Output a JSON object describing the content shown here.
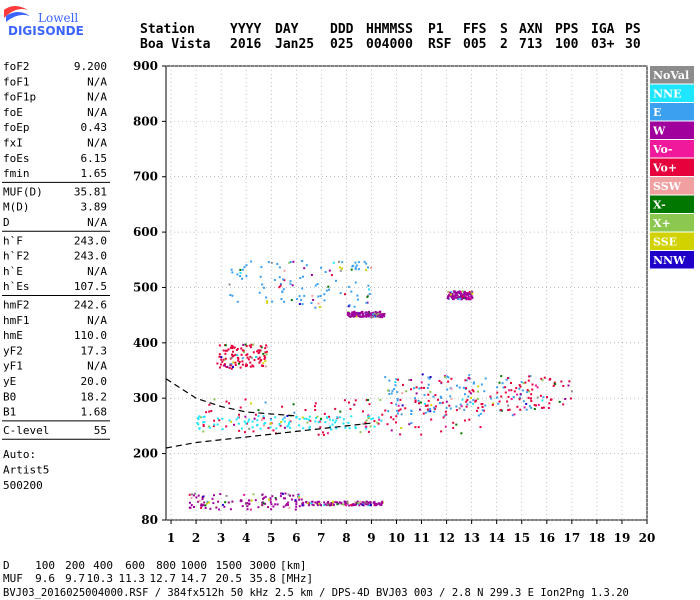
{
  "logo": {
    "line1": "Lowell",
    "line2": "DIGISONDE"
  },
  "header": {
    "columns": [
      {
        "label": "Station",
        "value": "Boa Vista"
      },
      {
        "label": "YYYY",
        "value": "2016"
      },
      {
        "label": "DAY",
        "value": "Jan25"
      },
      {
        "label": "DDD",
        "value": "025"
      },
      {
        "label": "HHMMSS",
        "value": "004000"
      },
      {
        "label": "P1",
        "value": "RSF"
      },
      {
        "label": "FFS",
        "value": "005"
      },
      {
        "label": "S",
        "value": "2"
      },
      {
        "label": "AXN",
        "value": "713"
      },
      {
        "label": "PPS",
        "value": "100"
      },
      {
        "label": "IGA",
        "value": "03+"
      },
      {
        "label": "PS",
        "value": "30"
      }
    ]
  },
  "parameters": {
    "group1": [
      {
        "name": "foF2",
        "value": "9.200"
      },
      {
        "name": "foF1",
        "value": "N/A"
      },
      {
        "name": "foF1p",
        "value": "N/A"
      },
      {
        "name": "foE",
        "value": "N/A"
      },
      {
        "name": "foEp",
        "value": "0.43"
      },
      {
        "name": "fxI",
        "value": "N/A"
      },
      {
        "name": "foEs",
        "value": "6.15"
      },
      {
        "name": "fmin",
        "value": "1.65"
      }
    ],
    "group2": [
      {
        "name": "MUF(D)",
        "value": "35.81"
      },
      {
        "name": "M(D)",
        "value": "3.89"
      },
      {
        "name": "D",
        "value": "N/A"
      }
    ],
    "group3": [
      {
        "name": "h`F",
        "value": "243.0"
      },
      {
        "name": "h`F2",
        "value": "243.0"
      },
      {
        "name": "h`E",
        "value": "N/A"
      },
      {
        "name": "h`Es",
        "value": "107.5"
      }
    ],
    "group4": [
      {
        "name": "hmF2",
        "value": "242.6"
      },
      {
        "name": "hmF1",
        "value": "N/A"
      },
      {
        "name": "hmE",
        "value": "110.0"
      },
      {
        "name": "yF2",
        "value": "17.3"
      },
      {
        "name": "yF1",
        "value": "N/A"
      },
      {
        "name": "yE",
        "value": "20.0"
      },
      {
        "name": "B0",
        "value": "18.2"
      },
      {
        "name": "B1",
        "value": "1.68"
      }
    ],
    "group5": [
      {
        "name": "C-level",
        "value": "55"
      }
    ],
    "auto": [
      "Auto:",
      "Artist5",
      "500200"
    ]
  },
  "legend": [
    {
      "label": "NoVal",
      "color": "#8c8c8c"
    },
    {
      "label": "NNE",
      "color": "#1ee6ff"
    },
    {
      "label": "E",
      "color": "#3ca0f0"
    },
    {
      "label": "W",
      "color": "#a0009b"
    },
    {
      "label": "Vo-",
      "color": "#f0189b"
    },
    {
      "label": "Vo+",
      "color": "#e6003c"
    },
    {
      "label": "SSW",
      "color": "#f0a0a0"
    },
    {
      "label": "X-",
      "color": "#007800"
    },
    {
      "label": "X+",
      "color": "#8cc850"
    },
    {
      "label": "SSE",
      "color": "#d2d200"
    },
    {
      "label": "NNW",
      "color": "#1e00c8"
    }
  ],
  "mufTable": {
    "dLabel": "D",
    "mufLabel": "MUF",
    "dValues": [
      "100",
      "200",
      "400",
      "600",
      "800",
      "1000",
      "1500",
      "3000"
    ],
    "dUnit": "[km]",
    "mufValues": [
      "9.6",
      "9.7",
      "10.3",
      "11.3",
      "12.7",
      "14.7",
      "20.5",
      "35.8"
    ],
    "mufUnit": "[MHz]"
  },
  "footer": "BVJ03_2016025004000.RSF / 384fx512h 50 kHz 2.5 km / DPS-4D BVJ03 003 / 2.8 N 299.3 E Ion2Png 1.3.20",
  "chart_data": {
    "type": "scatter",
    "xlim": [
      0.8,
      20
    ],
    "ylim": [
      80,
      900
    ],
    "x_ticks": [
      1,
      2,
      3,
      4,
      5,
      6,
      7,
      8,
      9,
      10,
      11,
      12,
      13,
      14,
      15,
      16,
      17,
      18,
      19,
      20
    ],
    "y_ticks": [
      80,
      200,
      300,
      400,
      500,
      600,
      700,
      800,
      900
    ],
    "grid": "dotted",
    "legend_position": "right",
    "echo_clusters": [
      {
        "name": "F2 O-trace",
        "color": "#e6003c",
        "x_range": [
          2.2,
          13.5
        ],
        "y_range": [
          235,
          300
        ]
      },
      {
        "name": "F2 cyan band",
        "color": "#1ee6ff",
        "x_range": [
          2.0,
          9.5
        ],
        "y_range": [
          245,
          270
        ]
      },
      {
        "name": "F2 spread",
        "color": "#3ca0f0",
        "x_range": [
          9.5,
          15.5
        ],
        "y_range": [
          270,
          345
        ]
      },
      {
        "name": "F2 mixed",
        "color": "#e6003c",
        "x_range": [
          10.0,
          17.0
        ],
        "y_range": [
          280,
          340
        ]
      },
      {
        "name": "Es",
        "color": "#a0009b",
        "x_range": [
          1.7,
          6.2
        ],
        "y_range": [
          100,
          130
        ]
      },
      {
        "name": "Es tail",
        "color": "#a0009b",
        "x_range": [
          6.2,
          9.5
        ],
        "y_range": [
          108,
          115
        ]
      },
      {
        "name": "2F2",
        "color": "#3ca0f0",
        "x_range": [
          3.2,
          9.0
        ],
        "y_range": [
          465,
          550
        ]
      },
      {
        "name": "2F2 segment",
        "color": "#a0009b",
        "x_range": [
          8.0,
          9.5
        ],
        "y_range": [
          448,
          458
        ]
      },
      {
        "name": "Multiple",
        "color": "#e6003c",
        "x_range": [
          2.8,
          4.8
        ],
        "y_range": [
          355,
          400
        ]
      },
      {
        "name": "High",
        "color": "#a0009b",
        "x_range": [
          12.0,
          13.0
        ],
        "y_range": [
          480,
          495
        ]
      }
    ],
    "profile_curves": [
      {
        "name": "electron density profile",
        "style": "dashed",
        "x": [
          0.8,
          2.0,
          4.0,
          6.0,
          8.0,
          9.0
        ],
        "y": [
          210,
          220,
          230,
          240,
          250,
          255
        ]
      },
      {
        "name": "profile upper",
        "style": "dashed",
        "x": [
          0.8,
          2.0,
          3.0,
          4.0,
          6.0
        ],
        "y": [
          335,
          300,
          285,
          275,
          268
        ]
      }
    ]
  }
}
